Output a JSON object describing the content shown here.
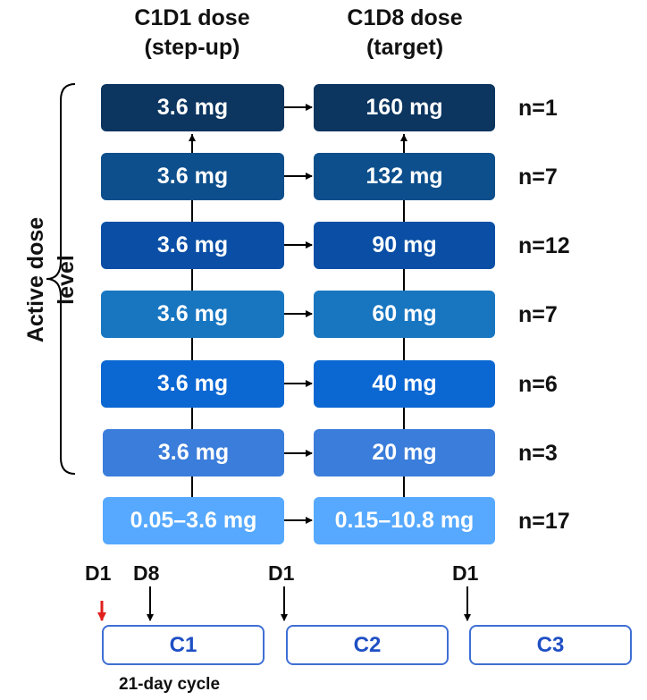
{
  "headers": {
    "c1d1": {
      "line1": "C1D1 dose",
      "line2": "(step-up)"
    },
    "c1d8": {
      "line1": "C1D8 dose",
      "line2": "(target)"
    }
  },
  "side_label": "Active dose level",
  "rows": [
    {
      "step_up": "3.6 mg",
      "target": "160 mg",
      "n": "n=1",
      "color": "#0c3560"
    },
    {
      "step_up": "3.6 mg",
      "target": "132 mg",
      "n": "n=7",
      "color": "#0d4f8c"
    },
    {
      "step_up": "3.6 mg",
      "target": "90 mg",
      "n": "n=12",
      "color": "#0a4fa5"
    },
    {
      "step_up": "3.6 mg",
      "target": "60 mg",
      "n": "n=7",
      "color": "#1876c1"
    },
    {
      "step_up": "3.6 mg",
      "target": "40 mg",
      "n": "n=6",
      "color": "#0b67d2"
    },
    {
      "step_up": "3.6 mg",
      "target": "20 mg",
      "n": "n=3",
      "color": "#3a7ddb"
    },
    {
      "step_up": "0.05–3.6 mg",
      "target": "0.15–10.8 mg",
      "n": "n=17",
      "color": "#56a9ff"
    }
  ],
  "timeline": {
    "day_labels": [
      "D1",
      "D8",
      "D1",
      "D1"
    ],
    "cycles": [
      "C1",
      "C2",
      "C3"
    ],
    "cycle_note": "21-day cycle",
    "first_marker_color": "#e0201c"
  }
}
